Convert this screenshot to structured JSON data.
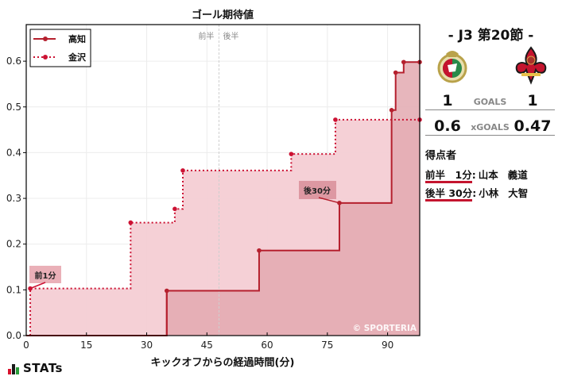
{
  "chart_data": {
    "type": "line",
    "subtype": "step-cumulative-area",
    "title": "ゴール期待値",
    "xlabel": "キックオフからの経過時間(分)",
    "ylabel": "",
    "xlim": [
      0,
      98
    ],
    "ylim": [
      0,
      0.68
    ],
    "xticks": [
      0,
      15,
      30,
      45,
      60,
      75,
      90
    ],
    "yticks": [
      0.0,
      0.1,
      0.2,
      0.3,
      0.4,
      0.5,
      0.6
    ],
    "xtick_labels": [
      "0",
      "15",
      "30",
      "45",
      "60",
      "75",
      "90"
    ],
    "ytick_labels": [
      "0.0",
      "0.1",
      "0.2",
      "0.3",
      "0.4",
      "0.5",
      "0.6"
    ],
    "grid": true,
    "legend_position": "upper left",
    "halftime_marker": {
      "x": 48,
      "labels": [
        "前半",
        "後半"
      ]
    },
    "series": [
      {
        "name": "高知",
        "style": "solid",
        "color": "#b5202e",
        "fill": "#e3a9b0",
        "x": [
          0,
          35,
          58,
          78,
          91,
          92,
          94,
          98
        ],
        "y": [
          0,
          0.098,
          0.186,
          0.29,
          0.493,
          0.575,
          0.598,
          0.598
        ]
      },
      {
        "name": "金沢",
        "style": "dotted",
        "color": "#cc1233",
        "fill": "#f4cdd4",
        "x": [
          1,
          26,
          37,
          39,
          66,
          77,
          98
        ],
        "y": [
          0.103,
          0.247,
          0.277,
          0.361,
          0.397,
          0.472,
          0.472
        ]
      }
    ],
    "annotations": [
      {
        "text": "前1分",
        "x": 1,
        "y": 0.103
      },
      {
        "text": "後30分",
        "x": 78,
        "y": 0.29
      }
    ],
    "watermark": "© SPORTERIA"
  },
  "chart": {
    "title": "ゴール期待値",
    "xlabel": "キックオフからの経過時間(分)",
    "legend": [
      {
        "label": "高知"
      },
      {
        "label": "金沢"
      }
    ],
    "halftime": {
      "first": "前半",
      "second": "後半"
    },
    "watermark": "© SPORTERIA"
  },
  "match": {
    "round": "- J3 第20節 -",
    "home_team": "高知",
    "away_team": "金沢",
    "goals": {
      "label": "GOALS",
      "home": "1",
      "away": "1"
    },
    "xgoals": {
      "label": "xGOALS",
      "home": "0.6",
      "away": "0.47"
    },
    "scorers_title": "得点者",
    "scorers": [
      {
        "time": "前半　1分",
        "family": "山本",
        "given": "義道"
      },
      {
        "time": "後半 30分",
        "family": "小林",
        "given": "大智"
      }
    ]
  },
  "brand": {
    "name": "STATs",
    "bar_colors": [
      "#d8112c",
      "#1a1a1a",
      "#2a9d3a"
    ]
  }
}
